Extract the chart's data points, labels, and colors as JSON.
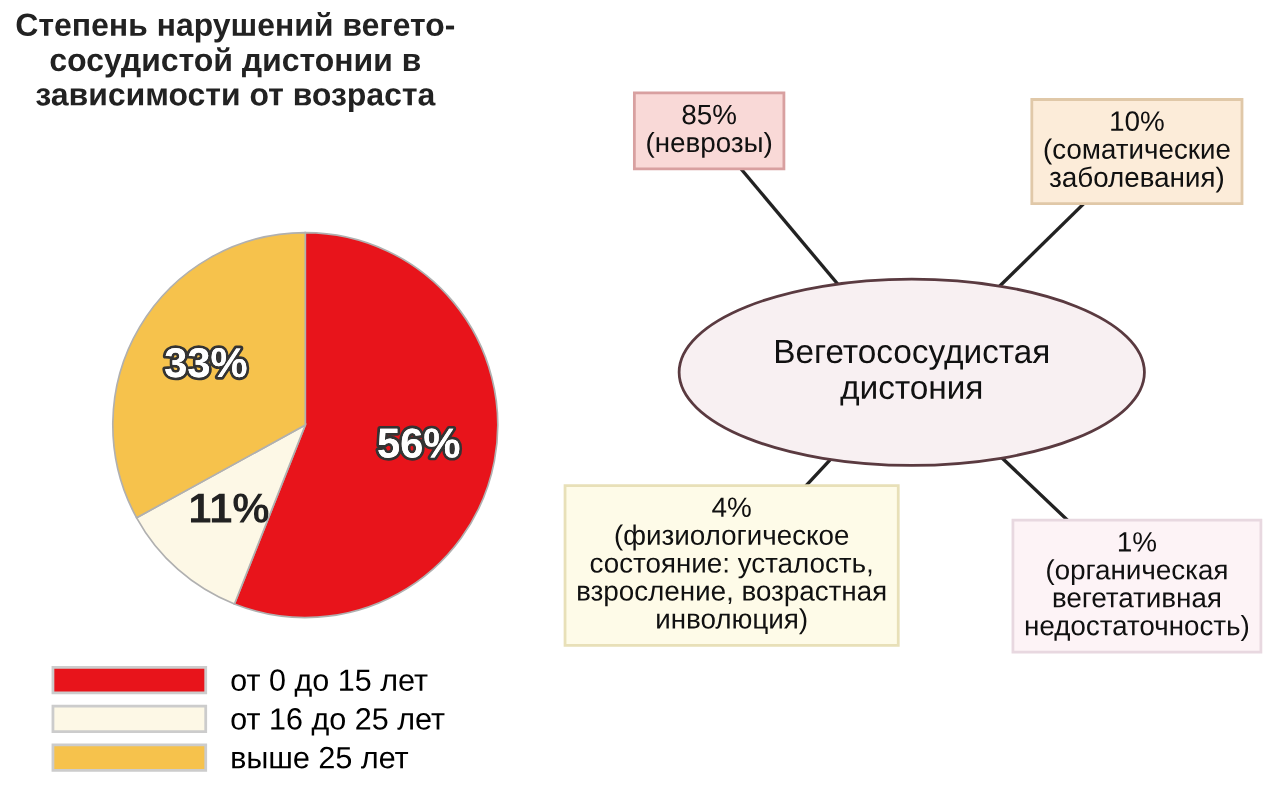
{
  "chart_data": [
    {
      "type": "pie",
      "title": "Степень нарушений вегето-\nсосудистой дистонии в\nзависимости от возраста",
      "categories": [
        "от 0 до 15 лет",
        "от 16 до 25 лет",
        "выше 25 лет"
      ],
      "values": [
        56,
        11,
        33
      ],
      "colors": [
        "#e8141b",
        "#fdf8e6",
        "#f6c24c"
      ],
      "value_labels": [
        "56%",
        "11%",
        "33%"
      ],
      "legend": "bottom"
    },
    {
      "type": "other",
      "annotations": [
        "Вегетососудистая\nдистония",
        "85%\n(неврозы)",
        "10%\n(соматические\nзаболевания)",
        "4%\n(физиологическое\nсостояние: усталость,\nвзросление, возрастная\nинволюция)",
        "1%\n(органическая\nвегетативная\nнедостаточность)"
      ]
    }
  ]
}
